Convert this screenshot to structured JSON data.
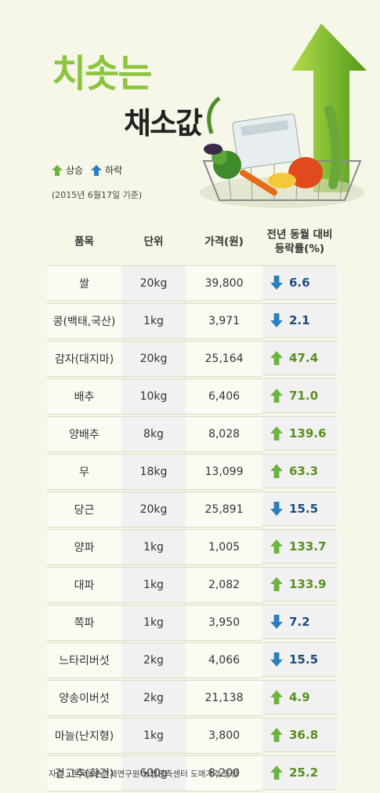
{
  "title": {
    "main": "치솟는",
    "sub": "채소값"
  },
  "legend": {
    "up": "상승",
    "down": "하락",
    "basis": "(2015년 6월17일 기준)"
  },
  "colors": {
    "up": "#8cc63f",
    "down": "#2a7fbf",
    "title_green": "#8cc63f"
  },
  "table": {
    "headers": [
      "품목",
      "단위",
      "가격(원)",
      "전년 동월 대비\n등락률(%)"
    ],
    "rows": [
      {
        "item": "쌀",
        "unit": "20kg",
        "price": "39,800",
        "direction": "down",
        "rate": "6.6"
      },
      {
        "item": "콩(백태,국산)",
        "unit": "1kg",
        "price": "3,971",
        "direction": "down",
        "rate": "2.1"
      },
      {
        "item": "감자(대지마)",
        "unit": "20kg",
        "price": "25,164",
        "direction": "up",
        "rate": "47.4"
      },
      {
        "item": "배추",
        "unit": "10kg",
        "price": "6,406",
        "direction": "up",
        "rate": "71.0"
      },
      {
        "item": "양배추",
        "unit": "8kg",
        "price": "8,028",
        "direction": "up",
        "rate": "139.6"
      },
      {
        "item": "무",
        "unit": "18kg",
        "price": "13,099",
        "direction": "up",
        "rate": "63.3"
      },
      {
        "item": "당근",
        "unit": "20kg",
        "price": "25,891",
        "direction": "down",
        "rate": "15.5"
      },
      {
        "item": "양파",
        "unit": "1kg",
        "price": "1,005",
        "direction": "up",
        "rate": "133.7"
      },
      {
        "item": "대파",
        "unit": "1kg",
        "price": "2,082",
        "direction": "up",
        "rate": "133.9"
      },
      {
        "item": "쪽파",
        "unit": "1kg",
        "price": "3,950",
        "direction": "down",
        "rate": "7.2"
      },
      {
        "item": "느타리버섯",
        "unit": "2kg",
        "price": "4,066",
        "direction": "down",
        "rate": "15.5"
      },
      {
        "item": "양송이버섯",
        "unit": "2kg",
        "price": "21,138",
        "direction": "up",
        "rate": "4.9"
      },
      {
        "item": "마늘(난지형)",
        "unit": "1kg",
        "price": "3,800",
        "direction": "up",
        "rate": "36.8"
      },
      {
        "item": "건고추(화건)",
        "unit": "600g",
        "price": "8,200",
        "direction": "up",
        "rate": "25.2"
      }
    ]
  },
  "source": "자료 : 한국농촌경제연구원 농업관측센터 도매가격 동향"
}
